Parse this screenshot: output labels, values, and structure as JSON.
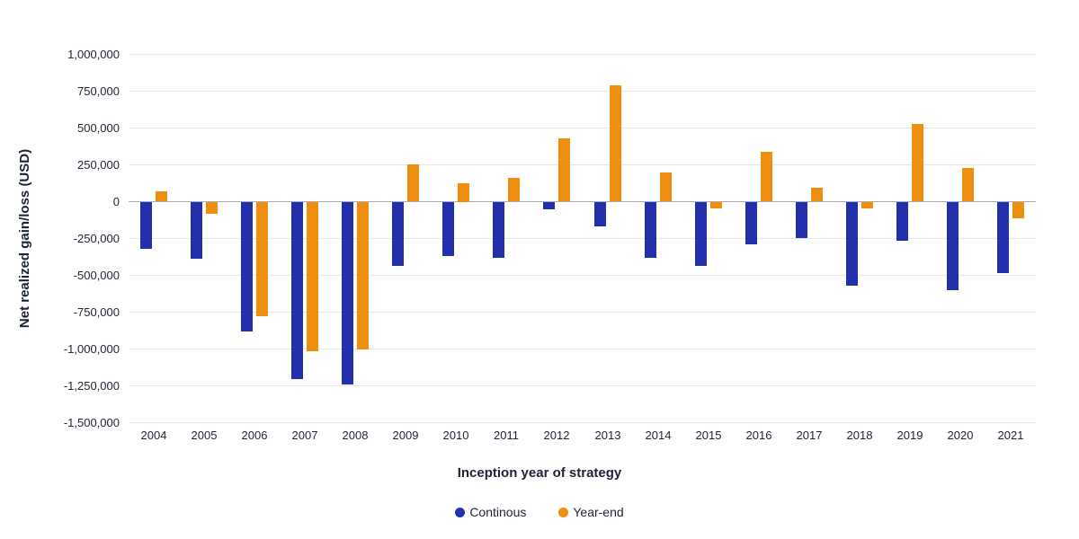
{
  "chart_data": {
    "type": "bar",
    "title": "",
    "xlabel": "Inception year of strategy",
    "ylabel": "Net realized gain/loss (USD)",
    "categories": [
      "2004",
      "2005",
      "2006",
      "2007",
      "2008",
      "2009",
      "2010",
      "2011",
      "2012",
      "2013",
      "2014",
      "2015",
      "2016",
      "2017",
      "2018",
      "2019",
      "2020",
      "2021"
    ],
    "series": [
      {
        "name": "Continous",
        "color": "#2330ac",
        "values": [
          -315000,
          -385000,
          -875000,
          -1200000,
          -1240000,
          -435000,
          -365000,
          -380000,
          -50000,
          -165000,
          -375000,
          -430000,
          -285000,
          -245000,
          -565000,
          -265000,
          -600000,
          -480000
        ]
      },
      {
        "name": "Year-end",
        "color": "#ef8f10",
        "values": [
          65000,
          -80000,
          -775000,
          -1010000,
          -1000000,
          250000,
          125000,
          160000,
          425000,
          785000,
          195000,
          -45000,
          335000,
          90000,
          -45000,
          525000,
          225000,
          -110000
        ]
      }
    ],
    "ylim": [
      -1500000,
      1000000
    ],
    "yticks": [
      {
        "value": 1000000,
        "label": "1,000,000"
      },
      {
        "value": 750000,
        "label": "750,000"
      },
      {
        "value": 500000,
        "label": "500,000"
      },
      {
        "value": 250000,
        "label": "250,000"
      },
      {
        "value": 0,
        "label": "0"
      },
      {
        "value": -250000,
        "label": "-250,000"
      },
      {
        "value": -500000,
        "label": "-500,000"
      },
      {
        "value": -750000,
        "label": "-750,000"
      },
      {
        "value": -1000000,
        "label": "-1,000,000"
      },
      {
        "value": -1250000,
        "label": "-1,250,000"
      },
      {
        "value": -1500000,
        "label": "-1,500,000"
      }
    ],
    "grid": true,
    "legend_position": "bottom"
  },
  "colors": {
    "text": "#1b2334",
    "gridline": "#e6e6e6",
    "zero_line": "#aaaaaa",
    "background": "#ffffff"
  }
}
